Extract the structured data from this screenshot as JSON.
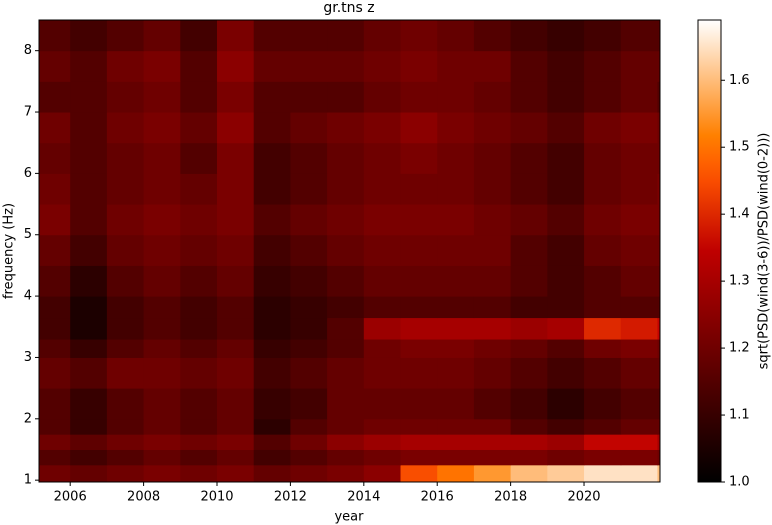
{
  "chart_data": {
    "type": "heatmap",
    "title": "gr.tns z",
    "x_label": "year",
    "y_label": "frequency (Hz)",
    "colorbar_label": "sqrt(PSD(wind(3-6))/PSD(wind(0-2)))",
    "colormap": "gist_heat",
    "xbins": [
      2005.15,
      2006,
      2007,
      2008,
      2009,
      2010,
      2011,
      2012,
      2013,
      2014,
      2015,
      2016,
      2017,
      2018,
      2019,
      2020,
      2021,
      2022,
      2022.07
    ],
    "ybins": [
      0.97,
      1.25,
      1.5,
      1.75,
      2.0,
      2.5,
      3.0,
      3.3,
      3.65,
      4.0,
      4.5,
      5.0,
      5.5,
      6.0,
      6.5,
      7.0,
      7.5,
      8.0,
      8.5
    ],
    "values": [
      [
        1.2,
        1.18,
        1.2,
        1.22,
        1.2,
        1.22,
        1.18,
        1.2,
        1.22,
        1.25,
        1.45,
        1.5,
        1.55,
        1.6,
        1.62,
        1.65,
        1.65,
        1.6
      ],
      [
        1.15,
        1.12,
        1.15,
        1.18,
        1.15,
        1.18,
        1.12,
        1.15,
        1.18,
        1.2,
        1.22,
        1.22,
        1.22,
        1.22,
        1.2,
        1.22,
        1.22,
        1.2
      ],
      [
        1.2,
        1.17,
        1.2,
        1.22,
        1.2,
        1.22,
        1.15,
        1.2,
        1.25,
        1.28,
        1.3,
        1.3,
        1.3,
        1.3,
        1.28,
        1.35,
        1.35,
        1.3
      ],
      [
        1.15,
        1.1,
        1.15,
        1.18,
        1.15,
        1.18,
        1.08,
        1.15,
        1.18,
        1.2,
        1.2,
        1.2,
        1.2,
        1.15,
        1.12,
        1.15,
        1.18,
        1.18
      ],
      [
        1.15,
        1.1,
        1.15,
        1.18,
        1.15,
        1.18,
        1.1,
        1.12,
        1.18,
        1.18,
        1.18,
        1.18,
        1.15,
        1.12,
        1.08,
        1.12,
        1.15,
        1.15
      ],
      [
        1.18,
        1.15,
        1.2,
        1.2,
        1.18,
        1.2,
        1.12,
        1.15,
        1.18,
        1.2,
        1.2,
        1.2,
        1.18,
        1.15,
        1.12,
        1.15,
        1.18,
        1.18
      ],
      [
        1.15,
        1.1,
        1.15,
        1.18,
        1.15,
        1.18,
        1.1,
        1.12,
        1.15,
        1.2,
        1.22,
        1.22,
        1.2,
        1.18,
        1.15,
        1.2,
        1.22,
        1.2
      ],
      [
        1.12,
        1.05,
        1.12,
        1.15,
        1.12,
        1.15,
        1.08,
        1.1,
        1.15,
        1.28,
        1.3,
        1.3,
        1.3,
        1.28,
        1.3,
        1.4,
        1.38,
        1.35
      ],
      [
        1.12,
        1.05,
        1.12,
        1.15,
        1.12,
        1.15,
        1.08,
        1.1,
        1.12,
        1.15,
        1.15,
        1.15,
        1.15,
        1.12,
        1.12,
        1.15,
        1.15,
        1.15
      ],
      [
        1.15,
        1.08,
        1.15,
        1.18,
        1.15,
        1.18,
        1.1,
        1.12,
        1.15,
        1.18,
        1.18,
        1.18,
        1.18,
        1.15,
        1.12,
        1.15,
        1.18,
        1.18
      ],
      [
        1.18,
        1.12,
        1.18,
        1.2,
        1.18,
        1.2,
        1.12,
        1.15,
        1.18,
        1.2,
        1.2,
        1.2,
        1.2,
        1.15,
        1.12,
        1.18,
        1.2,
        1.2
      ],
      [
        1.22,
        1.15,
        1.2,
        1.22,
        1.2,
        1.22,
        1.15,
        1.18,
        1.2,
        1.22,
        1.22,
        1.22,
        1.2,
        1.18,
        1.15,
        1.2,
        1.22,
        1.22
      ],
      [
        1.2,
        1.15,
        1.18,
        1.2,
        1.18,
        1.22,
        1.12,
        1.15,
        1.18,
        1.2,
        1.2,
        1.2,
        1.18,
        1.15,
        1.12,
        1.18,
        1.2,
        1.22
      ],
      [
        1.18,
        1.15,
        1.18,
        1.2,
        1.15,
        1.22,
        1.12,
        1.15,
        1.18,
        1.2,
        1.22,
        1.2,
        1.18,
        1.15,
        1.12,
        1.18,
        1.2,
        1.2
      ],
      [
        1.2,
        1.15,
        1.2,
        1.22,
        1.18,
        1.25,
        1.15,
        1.18,
        1.2,
        1.22,
        1.25,
        1.22,
        1.2,
        1.18,
        1.15,
        1.2,
        1.22,
        1.2
      ],
      [
        1.15,
        1.15,
        1.18,
        1.2,
        1.15,
        1.22,
        1.15,
        1.15,
        1.15,
        1.18,
        1.2,
        1.2,
        1.18,
        1.15,
        1.12,
        1.15,
        1.18,
        1.15
      ],
      [
        1.18,
        1.15,
        1.2,
        1.22,
        1.15,
        1.25,
        1.18,
        1.18,
        1.18,
        1.2,
        1.22,
        1.2,
        1.2,
        1.15,
        1.12,
        1.15,
        1.18,
        1.18
      ],
      [
        1.15,
        1.12,
        1.15,
        1.18,
        1.12,
        1.22,
        1.15,
        1.15,
        1.15,
        1.18,
        1.2,
        1.18,
        1.15,
        1.12,
        1.1,
        1.12,
        1.15,
        1.15
      ]
    ],
    "xlim": [
      2005.15,
      2022.07
    ],
    "xticks": [
      2006,
      2008,
      2010,
      2012,
      2014,
      2016,
      2018,
      2020
    ],
    "ylim": [
      0.97,
      8.5
    ],
    "yticks": [
      1,
      2,
      3,
      4,
      5,
      6,
      7,
      8
    ],
    "clim": [
      1.0,
      1.69
    ],
    "cticks": [
      {
        "value": 1.0,
        "label": "1.0"
      },
      {
        "value": 1.1,
        "label": "1.1"
      },
      {
        "value": 1.2,
        "label": "1.2"
      },
      {
        "value": 1.3,
        "label": "1.3"
      },
      {
        "value": 1.4,
        "label": "1.4"
      },
      {
        "value": 1.5,
        "label": "1.5"
      },
      {
        "value": 1.6,
        "label": "1.6"
      }
    ]
  }
}
